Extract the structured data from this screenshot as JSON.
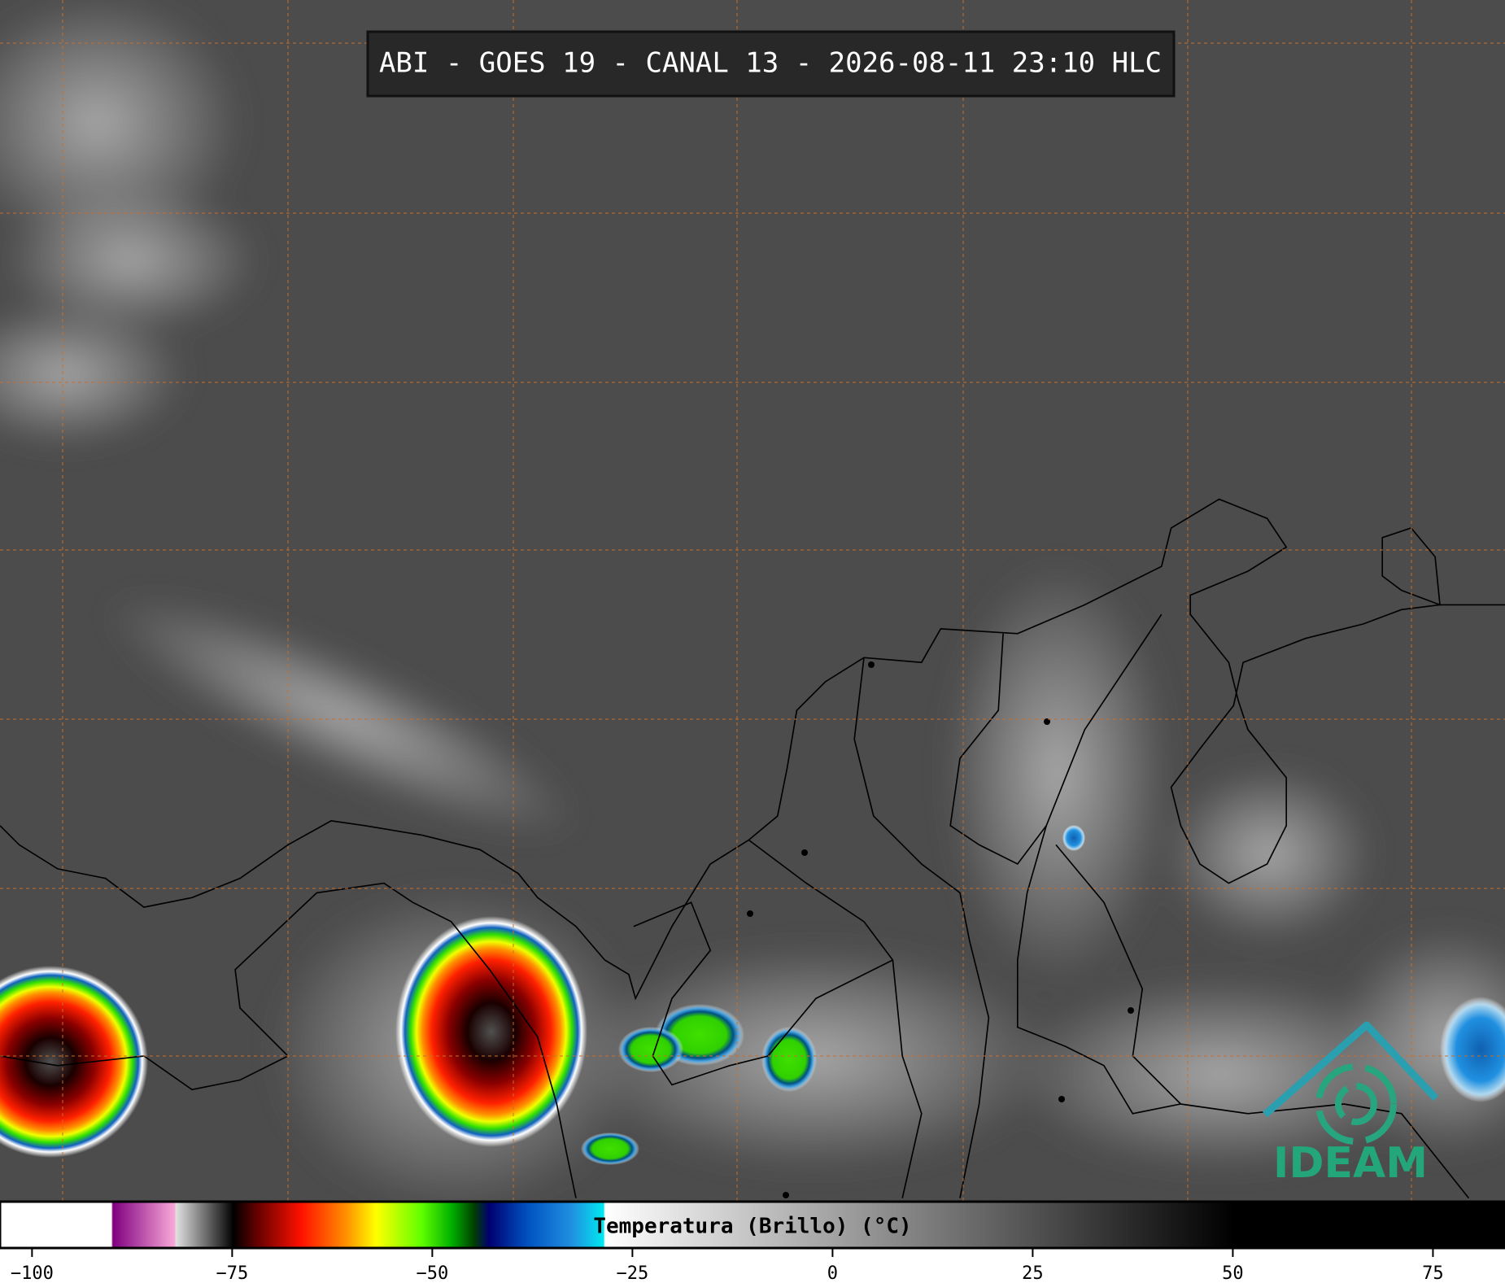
{
  "header": {
    "title": "ABI - GOES 19 - CANAL 13 - 2026-08-11 23:10 HLC"
  },
  "colorbar": {
    "label": "Temperatura (Brillo) (°C)",
    "lim": [
      -104,
      84
    ],
    "ticks": [
      {
        "value": -100,
        "label": "−100"
      },
      {
        "value": -75,
        "label": "−75"
      },
      {
        "value": -50,
        "label": "−50"
      },
      {
        "value": -25,
        "label": "−25"
      },
      0,
      25,
      50,
      75
    ]
  },
  "logo": {
    "text": "IDEAM"
  }
}
